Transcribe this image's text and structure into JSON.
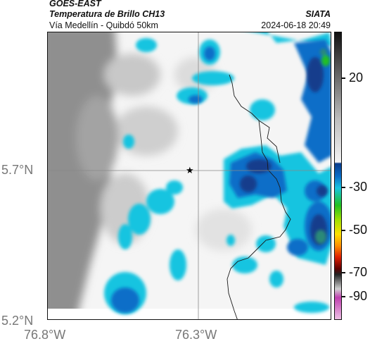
{
  "header": {
    "satellite": "GOES-EAST",
    "product": "Temperatura de Brillo CH13",
    "route": "Vía Medellín - Quibdó 50km",
    "organization": "SIATA",
    "timestamp": "2024-06-18 20:49"
  },
  "map": {
    "lat_labels": [
      "5.7°N",
      "5.2°N"
    ],
    "lon_labels": [
      "76.8°W",
      "76.3°W"
    ],
    "gridlines": true,
    "marker": "star-icon"
  },
  "colorbar": {
    "ticks": [
      "20",
      "-30",
      "-50",
      "-70",
      "-90"
    ],
    "colors": {
      "warm_gray": "#8c8c8c",
      "light": "#f4f4f4",
      "cyan": "#18c4e0",
      "blue": "#0a6ec8",
      "navy": "#143c8c",
      "green": "#20c020",
      "yellow": "#ffe000",
      "red": "#e01e00",
      "magenta": "#c040b0"
    }
  }
}
